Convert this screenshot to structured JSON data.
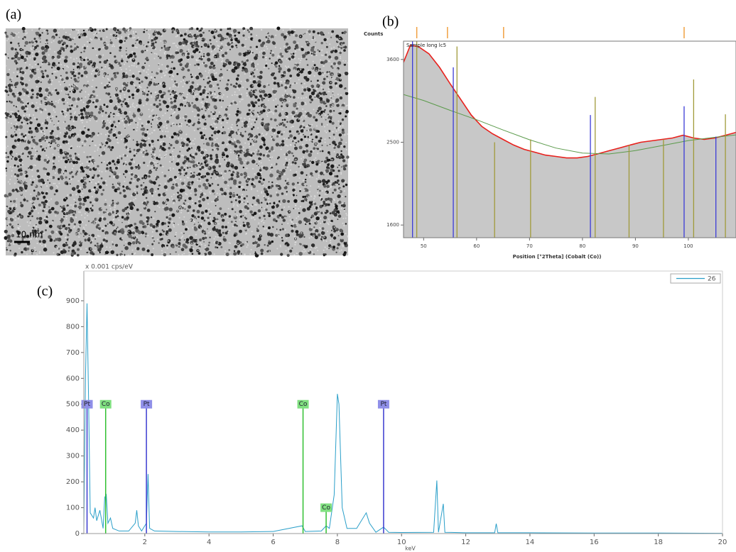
{
  "panel_labels": [
    "(a)",
    "(b)",
    "(c)"
  ],
  "image": {
    "scale_bar": "10 nm"
  },
  "chart_data": [
    {
      "type": "line",
      "ylabel": "Counts",
      "xlabel": "Position [°2Theta] (Cobalt (Co))",
      "xlim": [
        46.2,
        109
      ],
      "ylim": [
        1480,
        3870
      ],
      "yscale": "sqrt",
      "xticks": [
        50,
        60,
        70,
        80,
        90,
        100
      ],
      "yticks": [
        1600,
        2500,
        3600
      ],
      "series": [
        {
          "name": "Sample long lc5",
          "color": "#e8201c",
          "style": "area",
          "fill": "#c8c8c8",
          "x": [
            46.2,
            47.5,
            49,
            51,
            53,
            55,
            57,
            59,
            61,
            63,
            65,
            67,
            69,
            71,
            73,
            75,
            77,
            79,
            81,
            83,
            85,
            87,
            89,
            91,
            93,
            95,
            97,
            99,
            101,
            103,
            105,
            107,
            109
          ],
          "values": [
            3559,
            3810,
            3789,
            3683,
            3487,
            3257,
            3044,
            2839,
            2694,
            2604,
            2534,
            2466,
            2415,
            2381,
            2347,
            2331,
            2314,
            2314,
            2331,
            2364,
            2398,
            2432,
            2466,
            2500,
            2517,
            2534,
            2551,
            2585,
            2551,
            2534,
            2551,
            2585,
            2620
          ]
        },
        {
          "color": "#5a9a4a",
          "style": "line",
          "x": [
            46.2,
            50,
            55,
            60,
            65,
            70,
            75,
            80,
            85,
            90,
            95,
            100,
            105,
            109
          ],
          "values": [
            3110,
            3030,
            2900,
            2780,
            2650,
            2530,
            2430,
            2370,
            2360,
            2400,
            2460,
            2520,
            2560,
            2590
          ]
        },
        {
          "color": "#3b3bd6",
          "style": "sticks",
          "x": [
            47.9,
            55.6,
            81.5,
            99.2,
            105.2
          ],
          "values": [
            3870,
            3487,
            2839,
            2953,
            2568
          ]
        },
        {
          "color": "#a09a3a",
          "style": "sticks",
          "x": [
            48.7,
            56.3,
            63.4,
            70.2,
            82.4,
            88.8,
            95.3,
            101,
            107
          ],
          "values": [
            3870,
            3790,
            2500,
            2534,
            3077,
            2466,
            2534,
            3316,
            2848
          ]
        },
        {
          "color": "#f0a040",
          "style": "top-ticks",
          "x": [
            48.7,
            54.5,
            65.1,
            99.2
          ]
        }
      ]
    },
    {
      "type": "line",
      "ylabel": "x 0.001 cps/eV",
      "xlabel": "keV",
      "xlim": [
        0.1,
        20
      ],
      "ylim": [
        0,
        1015
      ],
      "xticks": [
        2,
        4,
        6,
        8,
        10,
        12,
        14,
        16,
        18,
        20
      ],
      "yticks": [
        0,
        100,
        200,
        300,
        400,
        500,
        600,
        700,
        800,
        900
      ],
      "series": [
        {
          "name": "26",
          "color": "#2a9fc9",
          "style": "line",
          "x": [
            0.1,
            0.15,
            0.2,
            0.25,
            0.3,
            0.4,
            0.45,
            0.5,
            0.6,
            0.7,
            0.75,
            0.8,
            0.85,
            0.93,
            1.0,
            1.2,
            1.5,
            1.7,
            1.75,
            1.8,
            1.9,
            2.05,
            2.1,
            2.15,
            2.3,
            3,
            4,
            5,
            6,
            6.9,
            7.0,
            7.5,
            7.65,
            7.75,
            7.9,
            8.0,
            8.05,
            8.15,
            8.3,
            8.6,
            8.9,
            9.0,
            9.2,
            9.44,
            9.6,
            10,
            11.0,
            11.1,
            11.15,
            11.3,
            11.35,
            12,
            12.9,
            12.95,
            13.0,
            14,
            16,
            18,
            20
          ],
          "values": [
            10,
            600,
            890,
            500,
            80,
            60,
            100,
            50,
            90,
            20,
            140,
            150,
            40,
            60,
            20,
            10,
            10,
            40,
            90,
            30,
            10,
            40,
            230,
            20,
            10,
            8,
            6,
            6,
            8,
            30,
            8,
            10,
            30,
            20,
            150,
            540,
            500,
            100,
            20,
            20,
            80,
            40,
            5,
            25,
            5,
            4,
            5,
            205,
            5,
            115,
            5,
            3,
            3,
            38,
            3,
            3,
            2,
            2,
            1
          ]
        }
      ],
      "annotations": [
        {
          "label": "Pt",
          "x": 0.2,
          "y": 500,
          "color": "#3a3ad0",
          "box": "#8f8fe8"
        },
        {
          "label": "Co",
          "x": 0.78,
          "y": 500,
          "color": "#30c030",
          "box": "#80e080"
        },
        {
          "label": "Pt",
          "x": 2.05,
          "y": 500,
          "color": "#3a3ad0",
          "box": "#8f8fe8"
        },
        {
          "label": "Co",
          "x": 6.93,
          "y": 500,
          "color": "#30c030",
          "box": "#80e080"
        },
        {
          "label": "Co",
          "x": 7.65,
          "y": 100,
          "color": "#30c030",
          "box": "#80e080"
        },
        {
          "label": "Pt",
          "x": 9.44,
          "y": 500,
          "color": "#3a3ad0",
          "box": "#8f8fe8"
        }
      ]
    }
  ]
}
